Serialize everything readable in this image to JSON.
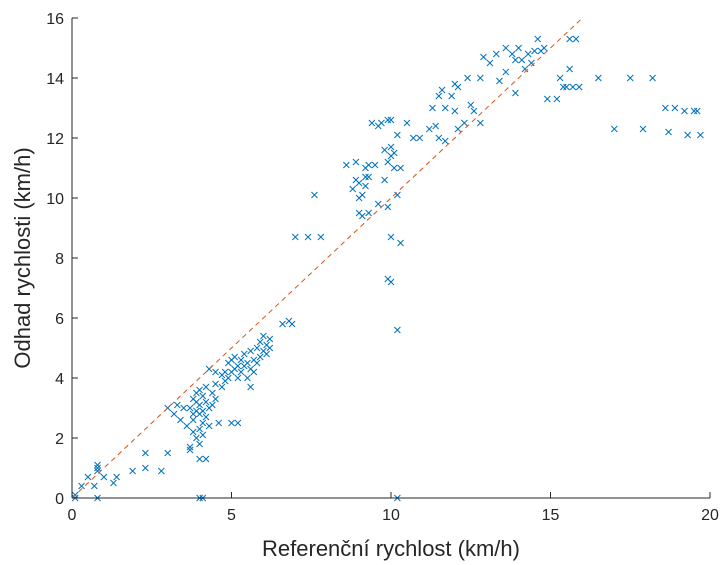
{
  "chart_data": {
    "type": "scatter",
    "title": "",
    "xlabel": "Referenční rychlost (km/h)",
    "ylabel": "Odhad rychlosti (km/h)",
    "xlim": [
      0,
      20
    ],
    "ylim": [
      0,
      16
    ],
    "xticks": [
      "0",
      "5",
      "10",
      "15",
      "20"
    ],
    "yticks": [
      "0",
      "2",
      "4",
      "6",
      "8",
      "10",
      "12",
      "14",
      "16"
    ],
    "grid": false,
    "marker": "x",
    "marker_color": "#0072BD",
    "reference_line": {
      "style": "dashed",
      "color": "#D95319",
      "points": [
        [
          0,
          0
        ],
        [
          16,
          16
        ]
      ]
    },
    "points": [
      [
        0.1,
        0.1
      ],
      [
        0.1,
        0.0
      ],
      [
        0.3,
        0.4
      ],
      [
        0.5,
        0.7
      ],
      [
        0.7,
        0.4
      ],
      [
        0.8,
        0.0
      ],
      [
        0.8,
        0.9
      ],
      [
        0.8,
        1.1
      ],
      [
        0.8,
        1.0
      ],
      [
        1.0,
        0.7
      ],
      [
        1.3,
        0.5
      ],
      [
        1.4,
        0.7
      ],
      [
        1.9,
        0.9
      ],
      [
        2.3,
        1.5
      ],
      [
        2.3,
        1.0
      ],
      [
        2.8,
        0.9
      ],
      [
        3.0,
        1.5
      ],
      [
        3.0,
        3.0
      ],
      [
        3.2,
        2.8
      ],
      [
        3.3,
        3.1
      ],
      [
        3.4,
        2.6
      ],
      [
        3.5,
        3.0
      ],
      [
        3.6,
        2.4
      ],
      [
        3.7,
        1.7
      ],
      [
        3.7,
        1.6
      ],
      [
        3.7,
        3.0
      ],
      [
        3.8,
        3.3
      ],
      [
        3.8,
        2.8
      ],
      [
        3.8,
        2.2
      ],
      [
        3.8,
        2.6
      ],
      [
        3.9,
        2.0
      ],
      [
        3.9,
        3.2
      ],
      [
        3.9,
        3.5
      ],
      [
        3.9,
        2.9
      ],
      [
        4.0,
        3.1
      ],
      [
        4.0,
        3.6
      ],
      [
        4.0,
        1.8
      ],
      [
        4.0,
        2.3
      ],
      [
        4.0,
        2.8
      ],
      [
        4.0,
        1.3
      ],
      [
        4.0,
        0.0
      ],
      [
        4.1,
        0.0
      ],
      [
        4.1,
        3.4
      ],
      [
        4.1,
        2.9
      ],
      [
        4.1,
        2.5
      ],
      [
        4.1,
        2.1
      ],
      [
        4.2,
        3.2
      ],
      [
        4.2,
        3.7
      ],
      [
        4.2,
        1.3
      ],
      [
        4.2,
        2.7
      ],
      [
        4.3,
        3.0
      ],
      [
        4.3,
        4.3
      ],
      [
        4.3,
        2.4
      ],
      [
        4.4,
        3.5
      ],
      [
        4.4,
        3.1
      ],
      [
        4.5,
        3.8
      ],
      [
        4.5,
        3.3
      ],
      [
        4.5,
        4.2
      ],
      [
        4.6,
        2.5
      ],
      [
        4.7,
        4.1
      ],
      [
        4.7,
        3.7
      ],
      [
        4.8,
        4.2
      ],
      [
        4.8,
        3.9
      ],
      [
        4.9,
        4.5
      ],
      [
        4.9,
        4.0
      ],
      [
        5.0,
        4.6
      ],
      [
        5.0,
        4.2
      ],
      [
        5.0,
        2.5
      ],
      [
        5.1,
        4.3
      ],
      [
        5.1,
        4.7
      ],
      [
        5.2,
        4.0
      ],
      [
        5.2,
        4.4
      ],
      [
        5.2,
        2.5
      ],
      [
        5.3,
        4.6
      ],
      [
        5.3,
        4.2
      ],
      [
        5.4,
        4.8
      ],
      [
        5.4,
        4.4
      ],
      [
        5.5,
        4.0
      ],
      [
        5.5,
        4.5
      ],
      [
        5.6,
        4.9
      ],
      [
        5.6,
        3.7
      ],
      [
        5.6,
        4.3
      ],
      [
        5.7,
        4.6
      ],
      [
        5.7,
        4.2
      ],
      [
        5.8,
        5.0
      ],
      [
        5.8,
        4.5
      ],
      [
        5.9,
        4.7
      ],
      [
        5.9,
        5.2
      ],
      [
        6.0,
        4.9
      ],
      [
        6.0,
        5.4
      ],
      [
        6.1,
        5.1
      ],
      [
        6.1,
        4.8
      ],
      [
        6.2,
        5.3
      ],
      [
        6.2,
        5.0
      ],
      [
        6.6,
        5.8
      ],
      [
        6.8,
        5.9
      ],
      [
        6.9,
        5.8
      ],
      [
        7.0,
        8.7
      ],
      [
        7.4,
        8.7
      ],
      [
        7.6,
        10.1
      ],
      [
        7.8,
        8.7
      ],
      [
        8.6,
        11.1
      ],
      [
        8.8,
        10.3
      ],
      [
        8.9,
        10.6
      ],
      [
        8.9,
        11.2
      ],
      [
        9.0,
        10.0
      ],
      [
        9.0,
        10.5
      ],
      [
        9.0,
        9.5
      ],
      [
        9.1,
        9.4
      ],
      [
        9.1,
        10.1
      ],
      [
        9.2,
        10.7
      ],
      [
        9.2,
        11.0
      ],
      [
        9.2,
        10.4
      ],
      [
        9.3,
        9.5
      ],
      [
        9.3,
        11.1
      ],
      [
        9.3,
        10.7
      ],
      [
        9.4,
        12.5
      ],
      [
        9.5,
        11.1
      ],
      [
        9.6,
        9.8
      ],
      [
        9.6,
        12.4
      ],
      [
        9.7,
        12.5
      ],
      [
        9.8,
        11.6
      ],
      [
        9.8,
        10.6
      ],
      [
        9.9,
        12.6
      ],
      [
        9.9,
        11.2
      ],
      [
        9.9,
        9.7
      ],
      [
        9.9,
        7.3
      ],
      [
        10.0,
        8.7
      ],
      [
        10.0,
        11.4
      ],
      [
        10.0,
        7.2
      ],
      [
        10.0,
        11.7
      ],
      [
        10.0,
        12.6
      ],
      [
        10.1,
        11.5
      ],
      [
        10.1,
        11.0
      ],
      [
        10.2,
        10.1
      ],
      [
        10.2,
        5.6
      ],
      [
        10.2,
        0.0
      ],
      [
        10.2,
        12.1
      ],
      [
        10.3,
        8.5
      ],
      [
        10.3,
        11.0
      ],
      [
        10.5,
        12.5
      ],
      [
        10.7,
        12.0
      ],
      [
        10.9,
        12.0
      ],
      [
        11.2,
        12.3
      ],
      [
        11.3,
        13.0
      ],
      [
        11.4,
        12.4
      ],
      [
        11.5,
        12.0
      ],
      [
        11.5,
        13.4
      ],
      [
        11.6,
        13.6
      ],
      [
        11.7,
        13.0
      ],
      [
        11.7,
        11.9
      ],
      [
        11.9,
        13.4
      ],
      [
        12.0,
        13.8
      ],
      [
        12.0,
        12.9
      ],
      [
        12.1,
        12.3
      ],
      [
        12.1,
        13.7
      ],
      [
        12.3,
        12.5
      ],
      [
        12.4,
        14.0
      ],
      [
        12.5,
        13.1
      ],
      [
        12.6,
        12.9
      ],
      [
        12.8,
        12.5
      ],
      [
        12.8,
        14.0
      ],
      [
        12.9,
        14.7
      ],
      [
        13.1,
        14.5
      ],
      [
        13.3,
        14.8
      ],
      [
        13.4,
        13.9
      ],
      [
        13.6,
        14.2
      ],
      [
        13.6,
        15.0
      ],
      [
        13.8,
        14.8
      ],
      [
        13.9,
        14.6
      ],
      [
        13.9,
        13.5
      ],
      [
        14.0,
        15.0
      ],
      [
        14.1,
        14.6
      ],
      [
        14.2,
        14.3
      ],
      [
        14.3,
        14.8
      ],
      [
        14.4,
        14.5
      ],
      [
        14.5,
        14.9
      ],
      [
        14.6,
        15.3
      ],
      [
        14.7,
        14.9
      ],
      [
        14.8,
        15.0
      ],
      [
        14.9,
        13.3
      ],
      [
        15.2,
        13.3
      ],
      [
        15.3,
        14.0
      ],
      [
        15.4,
        13.7
      ],
      [
        15.5,
        13.7
      ],
      [
        15.6,
        14.3
      ],
      [
        15.6,
        15.3
      ],
      [
        15.7,
        13.7
      ],
      [
        15.8,
        15.3
      ],
      [
        15.9,
        13.7
      ],
      [
        16.5,
        14.0
      ],
      [
        17.0,
        12.3
      ],
      [
        17.5,
        14.0
      ],
      [
        17.9,
        12.3
      ],
      [
        18.2,
        14.0
      ],
      [
        18.6,
        13.0
      ],
      [
        18.7,
        12.2
      ],
      [
        18.9,
        13.0
      ],
      [
        19.2,
        12.9
      ],
      [
        19.3,
        12.1
      ],
      [
        19.5,
        12.9
      ],
      [
        19.6,
        12.9
      ],
      [
        19.7,
        12.1
      ]
    ]
  }
}
